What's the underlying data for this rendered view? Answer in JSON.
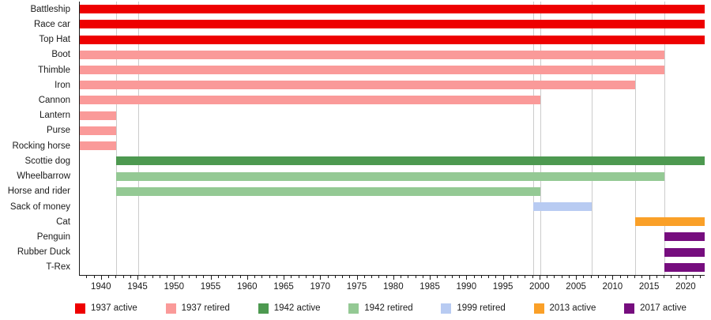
{
  "chart_data": {
    "type": "bar",
    "variant": "horizontal-gantt-timeline",
    "title": "",
    "xlabel": "",
    "ylabel": "",
    "x_axis": {
      "min": 1937,
      "max": 2022.5,
      "major_ticks": [
        1940,
        1945,
        1950,
        1955,
        1960,
        1965,
        1970,
        1975,
        1980,
        1985,
        1990,
        1995,
        2000,
        2005,
        2010,
        2015,
        2020
      ],
      "minor_tick_interval": 1,
      "gridlines_at": [
        1942,
        1945,
        1999,
        2000,
        2007,
        2013,
        2017
      ]
    },
    "bars": [
      {
        "label": "Battleship",
        "start": 1937,
        "end": "present",
        "status": "1937_active"
      },
      {
        "label": "Race car",
        "start": 1937,
        "end": "present",
        "status": "1937_active"
      },
      {
        "label": "Top Hat",
        "start": 1937,
        "end": "present",
        "status": "1937_active"
      },
      {
        "label": "Boot",
        "start": 1937,
        "end": 2017,
        "status": "1937_retired"
      },
      {
        "label": "Thimble",
        "start": 1937,
        "end": 2017,
        "status": "1937_retired"
      },
      {
        "label": "Iron",
        "start": 1937,
        "end": 2013,
        "status": "1937_retired"
      },
      {
        "label": "Cannon",
        "start": 1937,
        "end": 2000,
        "status": "1937_retired"
      },
      {
        "label": "Lantern",
        "start": 1937,
        "end": 1942,
        "status": "1937_retired"
      },
      {
        "label": "Purse",
        "start": 1937,
        "end": 1942,
        "status": "1937_retired"
      },
      {
        "label": "Rocking horse",
        "start": 1937,
        "end": 1942,
        "status": "1937_retired"
      },
      {
        "label": "Scottie dog",
        "start": 1942,
        "end": "present",
        "status": "1942_active"
      },
      {
        "label": "Wheelbarrow",
        "start": 1942,
        "end": 2017,
        "status": "1942_retired"
      },
      {
        "label": "Horse and rider",
        "start": 1942,
        "end": 2000,
        "status": "1942_retired"
      },
      {
        "label": "Sack of money",
        "start": 1999,
        "end": 2007,
        "status": "1999_retired"
      },
      {
        "label": "Cat",
        "start": 2013,
        "end": "present",
        "status": "2013_active"
      },
      {
        "label": "Penguin",
        "start": 2017,
        "end": "present",
        "status": "2017_active"
      },
      {
        "label": "Rubber Duck",
        "start": 2017,
        "end": "present",
        "status": "2017_active"
      },
      {
        "label": "T-Rex",
        "start": 2017,
        "end": "present",
        "status": "2017_active"
      }
    ],
    "legend": {
      "position": "bottom",
      "entries": [
        {
          "key": "1937_active",
          "label": "1937 active",
          "color": "#ee0000"
        },
        {
          "key": "1937_retired",
          "label": "1937 retired",
          "color": "#fa9a99"
        },
        {
          "key": "1942_active",
          "label": "1942 active",
          "color": "#4d9950"
        },
        {
          "key": "1942_retired",
          "label": "1942 retired",
          "color": "#94c994"
        },
        {
          "key": "1999_retired",
          "label": "1999 retired",
          "color": "#b8cbf2"
        },
        {
          "key": "2013_active",
          "label": "2013 active",
          "color": "#faa028"
        },
        {
          "key": "2017_active",
          "label": "2017 active",
          "color": "#760d7e"
        }
      ]
    },
    "style": {
      "axis_color": "#1a1a1a",
      "gridline_color": "#cccccc",
      "text_color": "#1a1a1a",
      "background": "#ffffff"
    }
  }
}
